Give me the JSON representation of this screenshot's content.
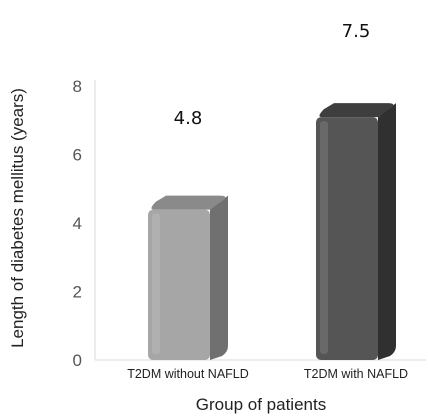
{
  "chart_data": {
    "type": "bar",
    "categories": [
      "T2DM without NAFLD",
      "T2DM with NAFLD"
    ],
    "values": [
      4.8,
      7.5
    ],
    "data_labels": [
      "4.8",
      "7.5"
    ],
    "title": "",
    "xlabel": "Group of patients",
    "ylabel": "Length of diabetes mellitus (years)",
    "ylim": [
      0,
      8
    ],
    "yticks": [
      "0",
      "2",
      "4",
      "6",
      "8"
    ],
    "grid": false,
    "legend": "none",
    "colors": {
      "bar1_front": "#a6a6a6",
      "bar1_side": "#707070",
      "bar1_top": "#8a8a8a",
      "bar2_front": "#555555",
      "bar2_side": "#303030",
      "bar2_top": "#3e3e3e"
    }
  }
}
